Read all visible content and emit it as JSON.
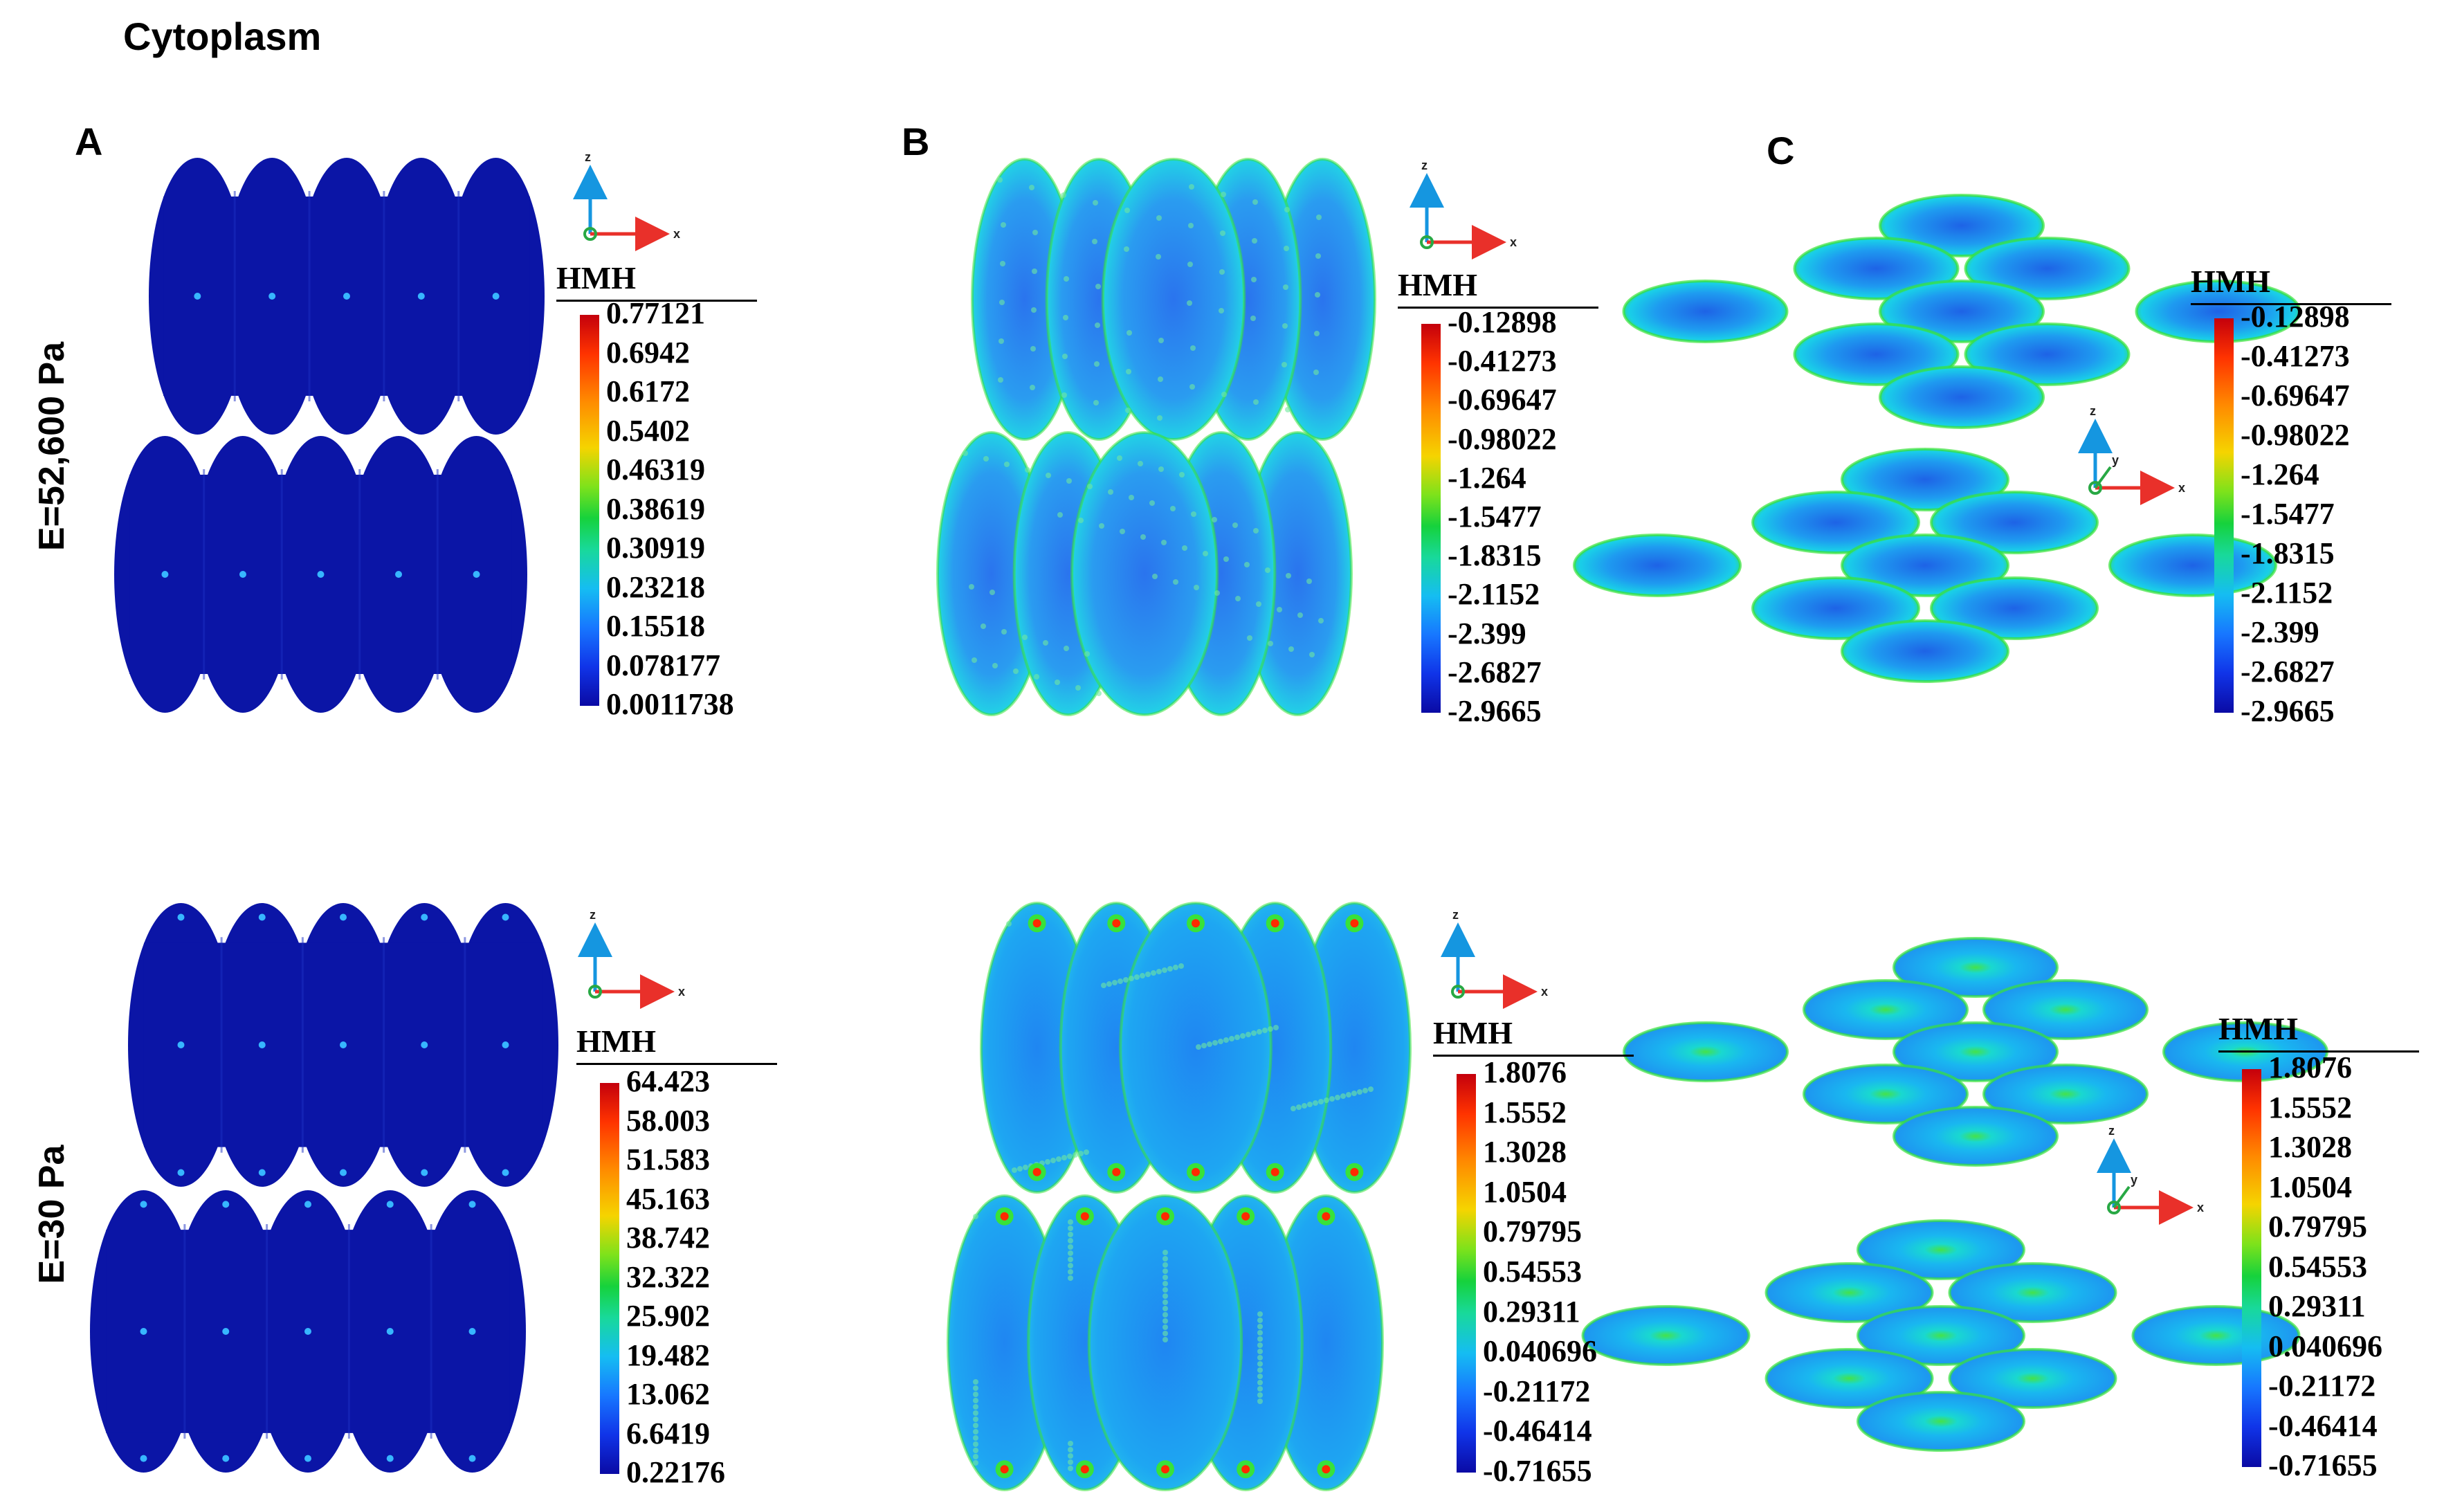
{
  "title": "Cytoplasm",
  "panel_labels": [
    "A",
    "B",
    "C"
  ],
  "row_labels": [
    "E=52,600 Pa",
    "E=30  Pa"
  ],
  "axis_letters": {
    "x": "x",
    "y": "y",
    "z": "z"
  },
  "colors": {
    "deep_blue": "#0b15a6",
    "field_blue": "#1f7ef0",
    "field_cyan": "#18c8ee",
    "highlight_green": "#38e23a",
    "hot_red": "#ff2a00",
    "axis_cyan": "#1596e0",
    "axis_red": "#e9302a",
    "axis_green": "#28a844"
  },
  "colorbars": [
    {
      "id": "top-A",
      "title": "HMH",
      "ticks": [
        "0.77121",
        "0.6942",
        "0.6172",
        "0.5402",
        "0.46319",
        "0.38619",
        "0.30919",
        "0.23218",
        "0.15518",
        "0.078177",
        "0.0011738"
      ]
    },
    {
      "id": "top-B",
      "title": "HMH",
      "ticks": [
        "-0.12898",
        "-0.41273",
        "-0.69647",
        "-0.98022",
        "-1.264",
        "-1.5477",
        "-1.8315",
        "-2.1152",
        "-2.399",
        "-2.6827",
        "-2.9665"
      ]
    },
    {
      "id": "top-C",
      "title": "HMH",
      "ticks": [
        "-0.12898",
        "-0.41273",
        "-0.69647",
        "-0.98022",
        "-1.264",
        "-1.5477",
        "-1.8315",
        "-2.1152",
        "-2.399",
        "-2.6827",
        "-2.9665"
      ]
    },
    {
      "id": "bottom-A",
      "title": "HMH",
      "ticks": [
        "64.423",
        "58.003",
        "51.583",
        "45.163",
        "38.742",
        "32.322",
        "25.902",
        "19.482",
        "13.062",
        "6.6419",
        "0.22176"
      ]
    },
    {
      "id": "bottom-B",
      "title": "HMH",
      "ticks": [
        "1.8076",
        "1.5552",
        "1.3028",
        "1.0504",
        "0.79795",
        "0.54553",
        "0.29311",
        "0.040696",
        "-0.21172",
        "-0.46414",
        "-0.71655"
      ]
    },
    {
      "id": "bottom-C",
      "title": "HMH",
      "ticks": [
        "1.8076",
        "1.5552",
        "1.3028",
        "1.0504",
        "0.79795",
        "0.54553",
        "0.29311",
        "0.040696",
        "-0.21172",
        "-0.46414",
        "-0.71655"
      ]
    }
  ]
}
